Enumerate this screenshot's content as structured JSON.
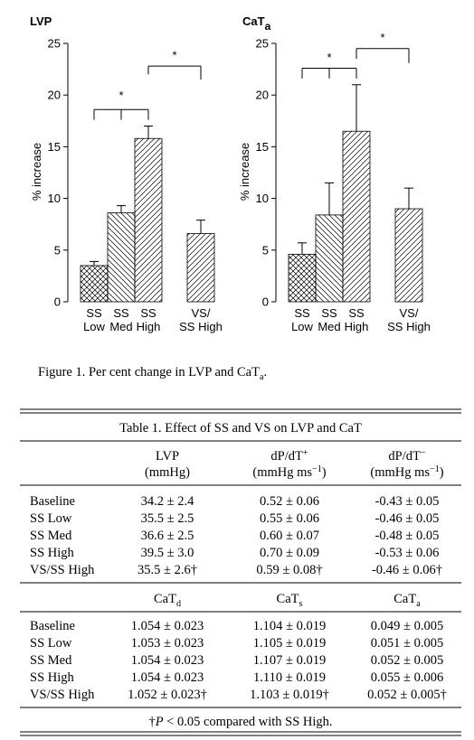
{
  "chart_data": [
    {
      "type": "bar",
      "title": "LVP",
      "ylabel": "% increase",
      "categories": [
        [
          "SS",
          "Low"
        ],
        [
          "SS",
          "Med"
        ],
        [
          "SS",
          "High"
        ],
        [
          "VS/",
          "SS High"
        ]
      ],
      "values": [
        3.5,
        8.6,
        15.8,
        6.6
      ],
      "errors": [
        0.4,
        0.7,
        1.2,
        1.3
      ],
      "hatches": [
        "cross",
        "back",
        "forward",
        "forward"
      ],
      "ylim": [
        0,
        25
      ],
      "yticks": [
        0,
        5,
        10,
        15,
        20,
        25
      ],
      "annotations": [
        "*",
        "*"
      ]
    },
    {
      "type": "bar",
      "title": "CaT",
      "title_sub": "a",
      "ylabel": "% increase",
      "categories": [
        [
          "SS",
          "Low"
        ],
        [
          "SS",
          "Med"
        ],
        [
          "SS",
          "High"
        ],
        [
          "VS/",
          "SS High"
        ]
      ],
      "values": [
        4.6,
        8.4,
        16.5,
        9.0
      ],
      "errors": [
        1.1,
        3.1,
        4.5,
        2.0
      ],
      "hatches": [
        "cross",
        "back",
        "forward",
        "forward"
      ],
      "ylim": [
        0,
        25
      ],
      "yticks": [
        0,
        5,
        10,
        15,
        20,
        25
      ],
      "annotations": [
        "*",
        "*"
      ]
    }
  ],
  "caption": [
    {
      "text": "Figure 1. Per cent change in LVP and CaT"
    },
    {
      "sub": "a"
    },
    {
      "text": "."
    }
  ],
  "table": {
    "title": "Table 1. Effect of SS and VS on LVP and CaT",
    "sections": [
      {
        "header": [
          [
            [
              {
                "text": "LVP"
              }
            ],
            [
              {
                "text": "(mmHg)"
              }
            ]
          ],
          [
            [
              {
                "text": "dP/dT"
              },
              {
                "sup": "+"
              }
            ],
            [
              {
                "text": "(mmHg ms"
              },
              {
                "sup": "−1"
              },
              {
                "text": ")"
              }
            ]
          ],
          [
            [
              {
                "text": "dP/dT"
              },
              {
                "sup": "−"
              }
            ],
            [
              {
                "text": "(mmHg ms"
              },
              {
                "sup": "−1"
              },
              {
                "text": ")"
              }
            ]
          ]
        ],
        "rows": [
          [
            "Baseline",
            "34.2 ± 2.4",
            "0.52 ± 0.06",
            "-0.43 ± 0.05"
          ],
          [
            "SS Low",
            "35.5 ± 2.5",
            "0.55 ± 0.06",
            "-0.46 ± 0.05"
          ],
          [
            "SS Med",
            "36.6 ± 2.5",
            "0.60 ± 0.07",
            "-0.48 ± 0.05"
          ],
          [
            "SS High",
            "39.5 ± 3.0",
            "0.70 ± 0.09",
            "-0.53 ± 0.06"
          ],
          [
            "VS/SS High",
            "35.5 ± 2.6†",
            "0.59 ± 0.08†",
            "-0.46 ± 0.06†"
          ]
        ]
      },
      {
        "header": [
          [
            [
              {
                "text": "CaT"
              },
              {
                "sub": "d"
              }
            ]
          ],
          [
            [
              {
                "text": "CaT"
              },
              {
                "sub": "s"
              }
            ]
          ],
          [
            [
              {
                "text": "CaT"
              },
              {
                "sub": "a"
              }
            ]
          ]
        ],
        "rows": [
          [
            "Baseline",
            "1.054 ± 0.023",
            "1.104 ± 0.019",
            "0.049 ± 0.005"
          ],
          [
            "SS Low",
            "1.053 ± 0.023",
            "1.105 ± 0.019",
            "0.051 ± 0.005"
          ],
          [
            "SS Med",
            "1.054 ± 0.023",
            "1.107 ± 0.019",
            "0.052 ± 0.005"
          ],
          [
            "SS High",
            "1.054 ± 0.023",
            "1.110 ± 0.019",
            "0.055 ± 0.006"
          ],
          [
            "VS/SS High",
            "1.052 ± 0.023†",
            "1.103 ± 0.019†",
            "0.052 ± 0.005†"
          ]
        ]
      }
    ],
    "footnote": [
      {
        "text": "†"
      },
      {
        "italic": "P"
      },
      {
        "text": " < 0.05 compared with SS High."
      }
    ]
  }
}
